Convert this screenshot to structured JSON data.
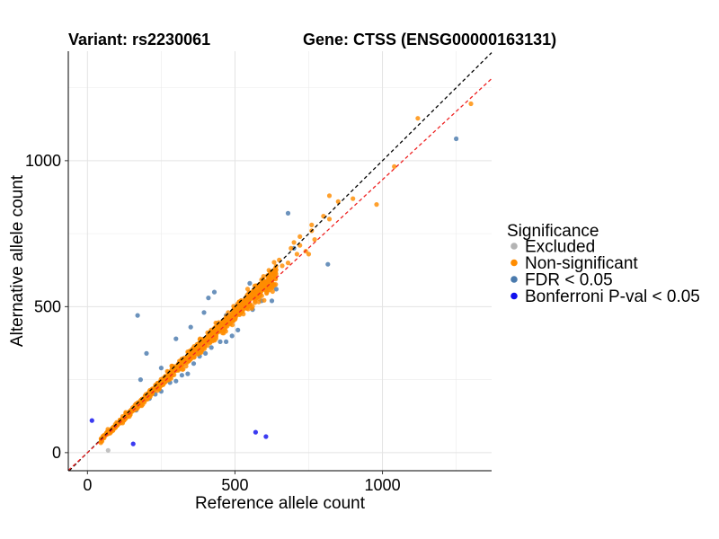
{
  "chart_data": {
    "type": "scatter",
    "title_left": "Variant: rs2230061",
    "title_right": "Gene: CTSS (ENSG00000163131)",
    "xlabel": "Reference allele count",
    "ylabel": "Alternative allele count",
    "xlim": [
      -65,
      1370
    ],
    "ylim": [
      -62,
      1375
    ],
    "x_ticks": [
      0,
      500,
      1000
    ],
    "y_ticks": [
      0,
      500,
      1000
    ],
    "grid": true,
    "legend": {
      "title": "Significance",
      "position": "right",
      "items": [
        {
          "label": "Excluded",
          "color": "#b3b3b3"
        },
        {
          "label": "Non-significant",
          "color": "#ff8c00"
        },
        {
          "label": "FDR < 0.05",
          "color": "#4a7aad"
        },
        {
          "label": "Bonferroni P-val < 0.05",
          "color": "#1010ee"
        }
      ]
    },
    "reference_lines": [
      {
        "name": "identity",
        "slope": 1.0,
        "intercept": 0,
        "color": "#000000",
        "style": "dashed"
      },
      {
        "name": "fit",
        "slope": 0.935,
        "intercept": 0,
        "color": "#ee2222",
        "style": "dashed"
      }
    ],
    "series": [
      {
        "name": "Excluded",
        "color": "#b3b3b3",
        "points": [
          [
            70,
            8
          ]
        ]
      },
      {
        "name": "Non-significant",
        "color": "#ff8c00",
        "cloud": {
          "x_min": 45,
          "x_max": 640,
          "count": 900,
          "slope": 0.955,
          "spread": 0.05
        },
        "points": [
          [
            1120,
            1145
          ],
          [
            1300,
            1195
          ],
          [
            1040,
            980
          ],
          [
            980,
            850
          ],
          [
            900,
            870
          ],
          [
            820,
            880
          ],
          [
            850,
            860
          ],
          [
            800,
            810
          ],
          [
            760,
            780
          ],
          [
            720,
            740
          ],
          [
            700,
            720
          ],
          [
            620,
            610
          ],
          [
            600,
            560
          ],
          [
            660,
            640
          ],
          [
            680,
            650
          ],
          [
            720,
            710
          ],
          [
            740,
            690
          ],
          [
            750,
            680
          ],
          [
            770,
            730
          ],
          [
            820,
            800
          ],
          [
            760,
            760
          ],
          [
            710,
            680
          ],
          [
            690,
            700
          ],
          [
            650,
            660
          ]
        ]
      },
      {
        "name": "FDR < 0.05",
        "color": "#4a7aad",
        "points": [
          [
            1250,
            1075
          ],
          [
            680,
            820
          ],
          [
            815,
            645
          ],
          [
            700,
            700
          ],
          [
            560,
            490
          ],
          [
            510,
            420
          ],
          [
            490,
            400
          ],
          [
            470,
            380
          ],
          [
            450,
            380
          ],
          [
            420,
            360
          ],
          [
            400,
            340
          ],
          [
            380,
            330
          ],
          [
            360,
            305
          ],
          [
            340,
            270
          ],
          [
            320,
            265
          ],
          [
            300,
            245
          ],
          [
            280,
            240
          ],
          [
            250,
            210
          ],
          [
            230,
            200
          ],
          [
            210,
            185
          ],
          [
            180,
            165
          ],
          [
            165,
            145
          ],
          [
            180,
            250
          ],
          [
            170,
            470
          ],
          [
            200,
            340
          ],
          [
            250,
            290
          ],
          [
            300,
            390
          ],
          [
            410,
            530
          ],
          [
            430,
            550
          ],
          [
            395,
            480
          ],
          [
            350,
            430
          ],
          [
            550,
            580
          ],
          [
            590,
            520
          ],
          [
            625,
            520
          ],
          [
            470,
            470
          ],
          [
            540,
            520
          ],
          [
            640,
            560
          ]
        ]
      },
      {
        "name": "Bonferroni P-val < 0.05",
        "color": "#1010ee",
        "points": [
          [
            15,
            110
          ],
          [
            155,
            30
          ],
          [
            570,
            70
          ],
          [
            605,
            55
          ]
        ]
      }
    ]
  }
}
